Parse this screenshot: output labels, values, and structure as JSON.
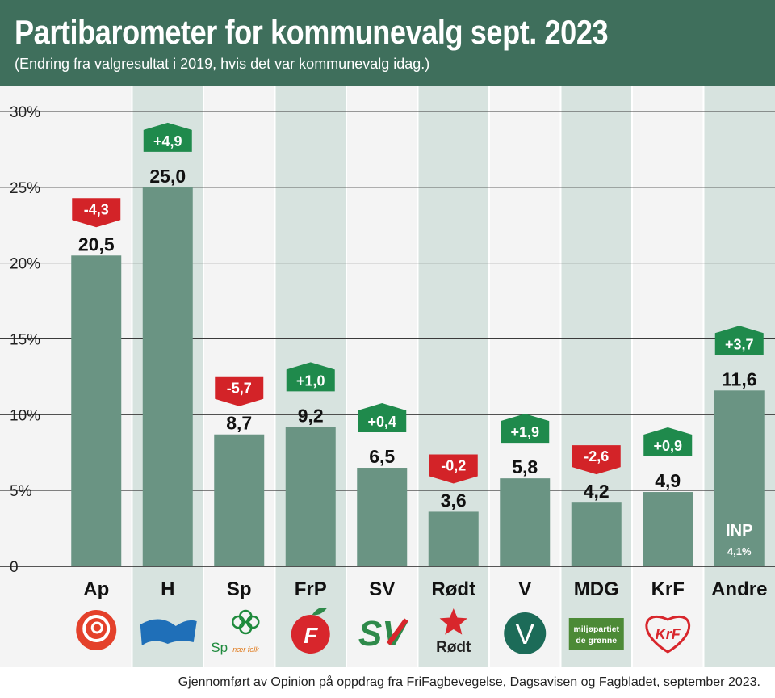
{
  "title": "Partibarometer for kommunevalg sept. 2023",
  "subtitle": "(Endring fra valgresultat i 2019, hvis det var kommunevalg idag.)",
  "source": "Gjennomført av Opinion på oppdrag fra FriFagbevegelse, Dagsavisen og Fagbladet, september 2023.",
  "colors": {
    "header": "#3f6f5c",
    "bar": "#6a9483",
    "column_light": "#f4f4f4",
    "column_dark": "#d7e3df",
    "positive": "#1f8a4c",
    "negative": "#d32328",
    "grid": "#3a3a3a"
  },
  "chart_data": {
    "type": "bar",
    "title": "Partibarometer for kommunevalg sept. 2023",
    "categories": [
      "Ap",
      "H",
      "Sp",
      "FrP",
      "SV",
      "Rødt",
      "V",
      "MDG",
      "KrF",
      "Andre"
    ],
    "values": [
      20.5,
      25.0,
      8.7,
      9.2,
      6.5,
      3.6,
      5.8,
      4.2,
      4.9,
      11.6
    ],
    "value_labels": [
      "20,5",
      "25,0",
      "8,7",
      "9,2",
      "6,5",
      "3,6",
      "5,8",
      "4,2",
      "4,9",
      "11,6"
    ],
    "changes": [
      -4.3,
      4.9,
      -5.7,
      1.0,
      0.4,
      -0.2,
      1.9,
      -2.6,
      0.9,
      3.7
    ],
    "change_labels": [
      "-4,3",
      "+4,9",
      "-5,7",
      "+1,0",
      "+0,4",
      "-0,2",
      "+1,9",
      "-2,6",
      "+0,9",
      "+3,7"
    ],
    "ylim": [
      0,
      30
    ],
    "y_ticks": [
      0,
      5,
      10,
      15,
      20,
      25,
      30
    ],
    "y_tick_labels": [
      "0",
      "5%",
      "10%",
      "15%",
      "20%",
      "25%",
      "30%"
    ],
    "grid": true,
    "annotation": {
      "category": "Andre",
      "label": "INP",
      "value_label": "4,1%"
    }
  },
  "logos": [
    {
      "party": "Ap",
      "icon": "rose-icon",
      "color": "#e4412b"
    },
    {
      "party": "H",
      "icon": "flag-icon",
      "color": "#1f6fb8"
    },
    {
      "party": "Sp",
      "icon": "clover-icon",
      "color": "#1e8a3c",
      "text": "Sp",
      "tagline": "nær folk"
    },
    {
      "party": "FrP",
      "icon": "apple-icon",
      "color": "#d8262c",
      "text": "F"
    },
    {
      "party": "SV",
      "icon": "sv-logo-icon",
      "color": "#2e8a4a",
      "text": "SV"
    },
    {
      "party": "Rødt",
      "icon": "star-icon",
      "color": "#d8262c",
      "text": "Rødt"
    },
    {
      "party": "V",
      "icon": "v-circle-icon",
      "color": "#1c6b58",
      "text": "V"
    },
    {
      "party": "MDG",
      "icon": "mdg-logo-icon",
      "color": "#4c8a36",
      "text": "miljøpartiet",
      "text2": "de grønne"
    },
    {
      "party": "KrF",
      "icon": "heart-icon",
      "color": "#d8262c",
      "text": "KrF"
    },
    {
      "party": "Andre",
      "icon": "",
      "color": ""
    }
  ]
}
